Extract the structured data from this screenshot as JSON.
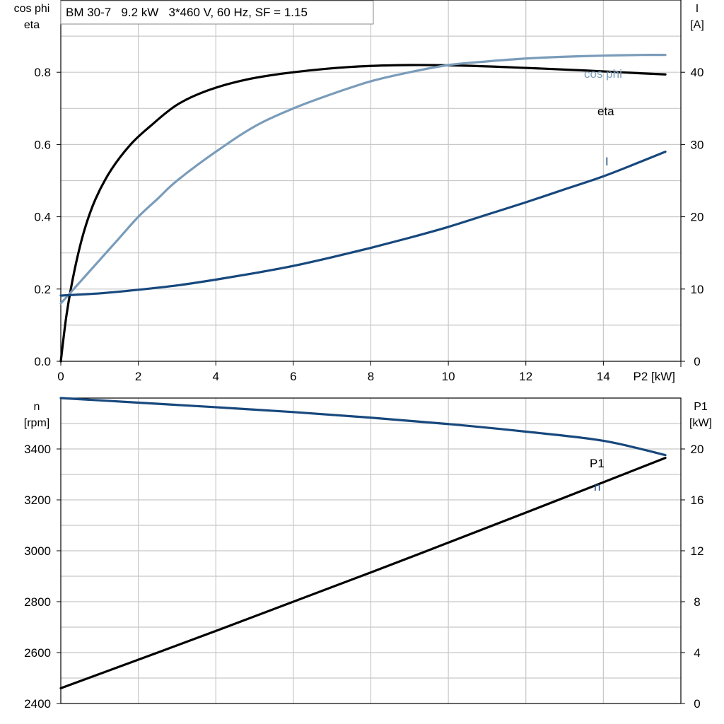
{
  "title": "BM 30-7   9.2 kW   3*460 V, 60 Hz, SF = 1.15",
  "colors": {
    "eta": "#000000",
    "cos_phi": "#7a9cba",
    "current": "#17487d",
    "speed": "#17487d",
    "p1": "#000000",
    "grid": "#c8c8c8",
    "axis": "#000000"
  },
  "chart_data": [
    {
      "type": "line",
      "title": "BM 30-7   9.2 kW   3*460 V, 60 Hz, SF = 1.15",
      "xlabel": "P2 [kW]",
      "ylabel_left": [
        "cos phi",
        "eta"
      ],
      "ylabel_right": [
        "I",
        "[A]"
      ],
      "xlim": [
        0,
        16
      ],
      "ylim_left": [
        0,
        1.0
      ],
      "ylim_right": [
        0,
        50
      ],
      "x_ticks": [
        0,
        2,
        4,
        6,
        8,
        10,
        12,
        14
      ],
      "y_ticks_left": [
        0.0,
        0.2,
        0.4,
        0.6,
        0.8
      ],
      "y_ticks_right": [
        0,
        10,
        20,
        30,
        40
      ],
      "grid": true,
      "series": [
        {
          "name": "eta",
          "axis": "left",
          "x": [
            0,
            0.15,
            0.35,
            0.6,
            0.9,
            1.3,
            1.8,
            2.3,
            3.0,
            3.8,
            4.8,
            6.0,
            7.5,
            9.0,
            10.5,
            12.0,
            13.5,
            15.0,
            15.6
          ],
          "y": [
            0.0,
            0.13,
            0.25,
            0.36,
            0.45,
            0.53,
            0.6,
            0.65,
            0.71,
            0.75,
            0.78,
            0.8,
            0.815,
            0.82,
            0.818,
            0.812,
            0.805,
            0.797,
            0.794
          ]
        },
        {
          "name": "cos phi",
          "axis": "left",
          "x": [
            0,
            0.5,
            1,
            1.5,
            2,
            2.5,
            3,
            4,
            5,
            6,
            7,
            8,
            9,
            10,
            11,
            12,
            13,
            14,
            15,
            15.6
          ],
          "y": [
            0.16,
            0.22,
            0.28,
            0.34,
            0.4,
            0.45,
            0.5,
            0.58,
            0.65,
            0.7,
            0.74,
            0.775,
            0.8,
            0.82,
            0.83,
            0.838,
            0.843,
            0.846,
            0.848,
            0.848
          ]
        },
        {
          "name": "I",
          "axis": "right",
          "x": [
            0,
            1,
            2,
            3,
            4,
            5,
            6,
            7,
            8,
            9,
            10,
            11,
            12,
            13,
            14,
            15,
            15.6
          ],
          "y": [
            9.1,
            9.4,
            9.9,
            10.5,
            11.3,
            12.2,
            13.2,
            14.4,
            15.7,
            17.1,
            18.6,
            20.3,
            22.0,
            23.8,
            25.6,
            27.7,
            29.0
          ]
        }
      ]
    },
    {
      "type": "line",
      "xlabel": "",
      "ylabel_left": [
        "n",
        "[rpm]"
      ],
      "ylabel_right": [
        "P1",
        "[kW]"
      ],
      "xlim": [
        0,
        16
      ],
      "ylim_left": [
        2400,
        3600
      ],
      "ylim_right": [
        0,
        24
      ],
      "y_ticks_left": [
        2400,
        2600,
        2800,
        3000,
        3200,
        3400
      ],
      "y_ticks_right": [
        0,
        4,
        8,
        12,
        16,
        20
      ],
      "grid": true,
      "series": [
        {
          "name": "n",
          "axis": "left",
          "x": [
            0,
            2,
            4,
            6,
            8,
            10,
            12,
            14,
            15.6
          ],
          "y": [
            3600,
            3582,
            3564,
            3545,
            3523,
            3498,
            3468,
            3432,
            3376
          ]
        },
        {
          "name": "P1",
          "axis": "right",
          "x": [
            0,
            4,
            8,
            12,
            15.6
          ],
          "y": [
            1.2,
            5.7,
            10.3,
            15.0,
            19.3
          ]
        }
      ]
    }
  ]
}
